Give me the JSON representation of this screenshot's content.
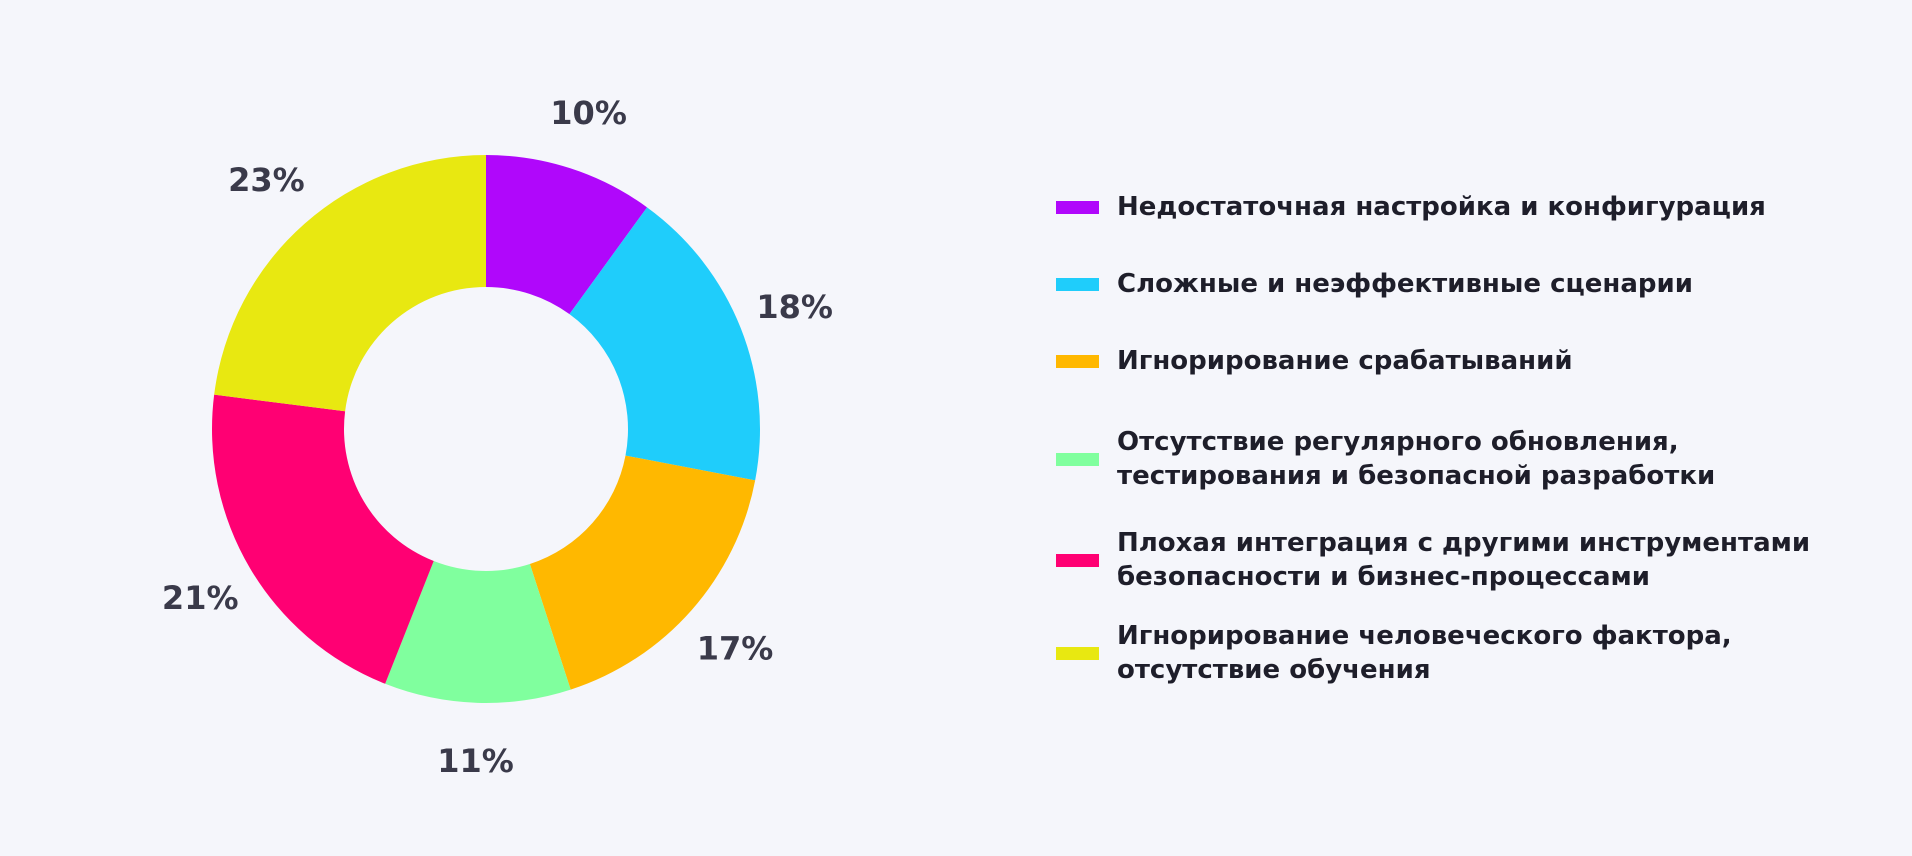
{
  "chart_data": {
    "type": "pie",
    "style": "donut",
    "categories": [
      "Недостаточная настройка и конфигурация",
      "Сложные и неэффективные сценарии",
      "Игнорирование срабатываний",
      "Отсутствие регулярного обновления,\nтестирования и безопасной разработки",
      "Плохая интеграция с другими инструментами\nбезопасности и бизнес-процессами",
      "Игнорирование человеческого фактора,\nотсутствие обучения"
    ],
    "values": [
      10,
      18,
      17,
      11,
      21,
      23
    ],
    "labels": [
      "10%",
      "18%",
      "17%",
      "11%",
      "21%",
      "23%"
    ],
    "colors": [
      "#b007fb",
      "#1fcdfb",
      "#ffb800",
      "#80ff9e",
      "#ff0073",
      "#e8e811"
    ],
    "legend": "right",
    "title": ""
  }
}
